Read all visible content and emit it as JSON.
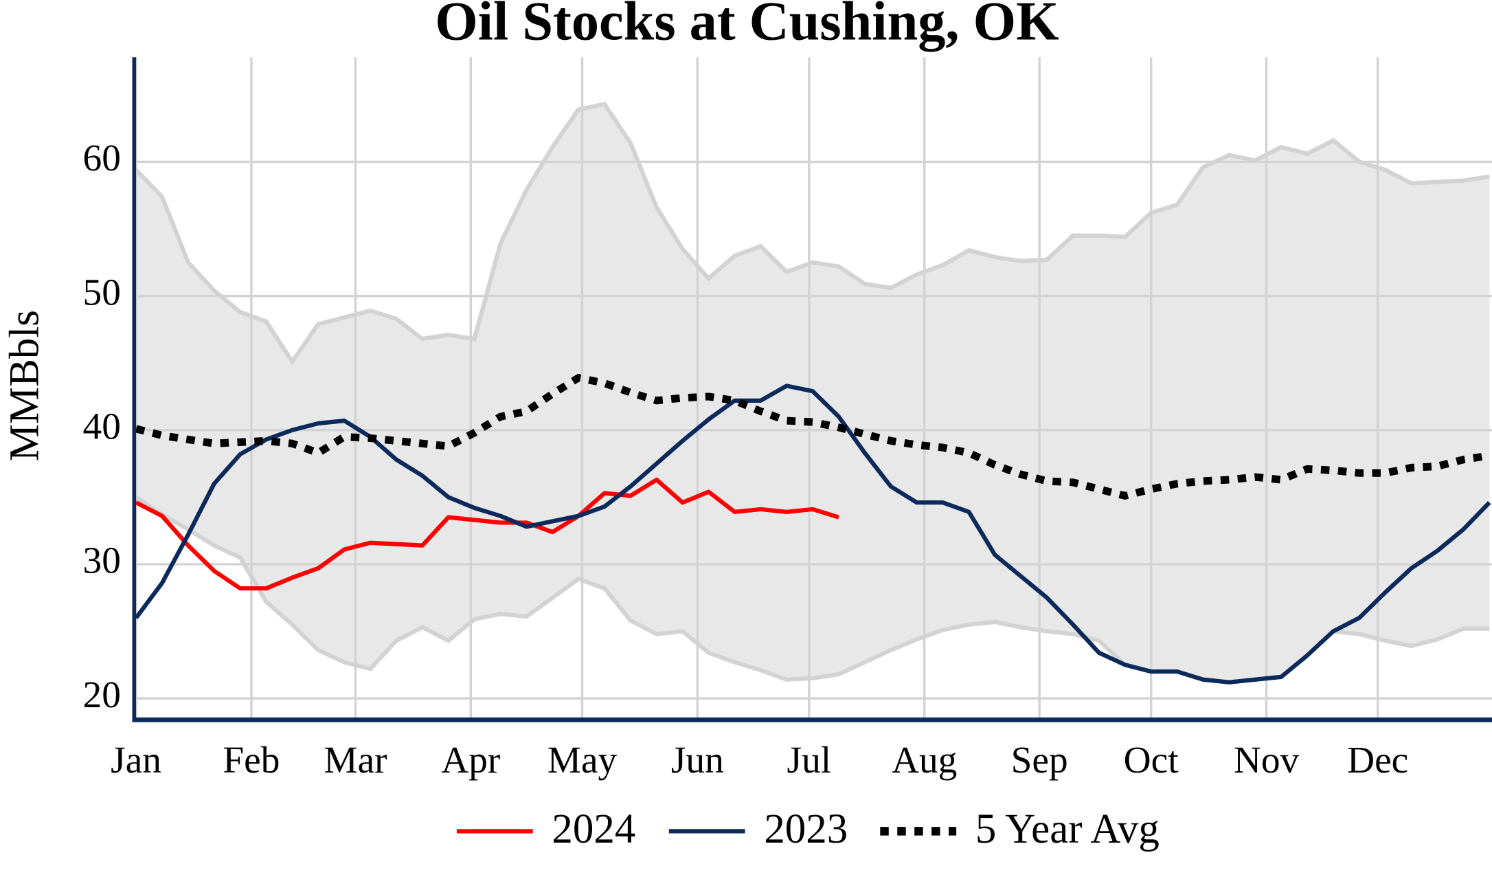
{
  "chart_data": {
    "type": "line",
    "title": "Oil Stocks at Cushing, OK",
    "y_label": "MMBbls",
    "x": [
      0,
      1,
      2,
      3,
      4,
      5,
      6,
      7,
      8,
      9,
      10,
      11,
      12,
      13,
      14,
      15,
      16,
      17,
      18,
      19,
      20,
      21,
      22,
      23,
      24,
      25,
      26,
      27,
      28,
      29,
      30,
      31,
      32,
      33,
      34,
      35,
      36,
      37,
      38,
      39,
      40,
      41,
      42,
      43,
      44,
      45,
      46,
      47,
      48,
      49,
      50,
      51,
      52
    ],
    "xlim": [
      0,
      52.1
    ],
    "xticks": [
      {
        "value": 0,
        "label": "Jan"
      },
      {
        "value": 4.43,
        "label": "Feb"
      },
      {
        "value": 8.43,
        "label": "Mar"
      },
      {
        "value": 12.86,
        "label": "Apr"
      },
      {
        "value": 17.14,
        "label": "May"
      },
      {
        "value": 21.57,
        "label": "Jun"
      },
      {
        "value": 25.86,
        "label": "Jul"
      },
      {
        "value": 30.29,
        "label": "Aug"
      },
      {
        "value": 34.71,
        "label": "Sep"
      },
      {
        "value": 39,
        "label": "Oct"
      },
      {
        "value": 43.43,
        "label": "Nov"
      },
      {
        "value": 47.71,
        "label": "Dec"
      }
    ],
    "ylim": [
      18.4,
      67.8
    ],
    "yticks": [
      20,
      30,
      40,
      50,
      60
    ],
    "grid": true,
    "range": {
      "color": "#e8e8e8",
      "edge_color": "#d3d3d3",
      "upper": [
        59.4,
        57.4,
        52.5,
        50.4,
        48.8,
        48.1,
        45.1,
        47.9,
        48.4,
        48.9,
        48.3,
        46.8,
        47.1,
        46.8,
        53.9,
        57.9,
        61.1,
        63.9,
        64.3,
        61.4,
        56.6,
        53.5,
        51.3,
        53.0,
        53.7,
        51.8,
        52.5,
        52.2,
        50.9,
        50.6,
        51.6,
        52.3,
        53.4,
        52.9,
        52.6,
        52.7,
        54.5,
        54.5,
        54.4,
        56.2,
        56.8,
        59.6,
        60.5,
        60.1,
        61.1,
        60.6,
        61.6,
        60.0,
        59.4,
        58.4,
        58.5,
        58.6,
        58.9
      ],
      "lower": [
        35.0,
        33.7,
        32.6,
        31.4,
        30.5,
        27.2,
        25.5,
        23.6,
        22.7,
        22.2,
        24.3,
        25.3,
        24.3,
        25.9,
        26.3,
        26.1,
        27.5,
        28.9,
        28.2,
        25.8,
        24.8,
        25.0,
        23.4,
        22.7,
        22.1,
        21.4,
        21.5,
        21.8,
        22.7,
        23.6,
        24.4,
        25.1,
        25.5,
        25.7,
        25.3,
        25.0,
        24.8,
        24.3,
        22.5,
        22.0,
        22.0,
        21.4,
        21.2,
        21.4,
        21.6,
        23.2,
        25.0,
        24.8,
        24.3,
        23.9,
        24.4,
        25.2,
        25.2
      ]
    },
    "series": [
      {
        "name": "2024",
        "color": "#ff0000",
        "style": "solid",
        "values": [
          34.6,
          33.6,
          31.4,
          29.5,
          28.2,
          28.2,
          29.0,
          29.7,
          31.1,
          31.6,
          31.5,
          31.4,
          33.5,
          33.3,
          33.1,
          33.1,
          32.4,
          33.6,
          35.3,
          35.1,
          36.3,
          34.6,
          35.4,
          33.9,
          34.1,
          33.9,
          34.1,
          33.5,
          null,
          null,
          null,
          null,
          null,
          null,
          null,
          null,
          null,
          null,
          null,
          null,
          null,
          null,
          null,
          null,
          null,
          null,
          null,
          null,
          null,
          null,
          null,
          null,
          null
        ]
      },
      {
        "name": "2023",
        "color": "#0b2a5b",
        "style": "solid",
        "values": [
          26.0,
          28.6,
          32.2,
          36.0,
          38.2,
          39.3,
          40.0,
          40.5,
          40.7,
          39.5,
          37.8,
          36.6,
          35.0,
          34.2,
          33.6,
          32.8,
          33.2,
          33.6,
          34.3,
          35.8,
          37.5,
          39.2,
          40.8,
          42.2,
          42.2,
          43.3,
          42.9,
          41.0,
          38.3,
          35.8,
          34.6,
          34.6,
          33.9,
          30.7,
          29.1,
          27.5,
          25.5,
          23.4,
          22.5,
          22.0,
          22.0,
          21.4,
          21.2,
          21.4,
          21.6,
          23.2,
          25.0,
          26.0,
          27.9,
          29.7,
          31.0,
          32.6,
          34.6
        ]
      },
      {
        "name": "5 Year Avg",
        "color": "#000000",
        "style": "dotted",
        "values": [
          40.1,
          39.6,
          39.3,
          39.0,
          39.1,
          39.2,
          39.0,
          38.3,
          39.5,
          39.4,
          39.2,
          39.0,
          38.8,
          39.8,
          41.0,
          41.4,
          42.7,
          43.9,
          43.5,
          42.8,
          42.2,
          42.4,
          42.5,
          42.2,
          41.4,
          40.7,
          40.6,
          40.2,
          39.7,
          39.2,
          38.9,
          38.7,
          38.3,
          37.4,
          36.7,
          36.2,
          36.1,
          35.6,
          35.1,
          35.6,
          36.0,
          36.2,
          36.3,
          36.5,
          36.3,
          37.1,
          37.0,
          36.8,
          36.8,
          37.2,
          37.3,
          37.8,
          38.1
        ]
      }
    ]
  }
}
